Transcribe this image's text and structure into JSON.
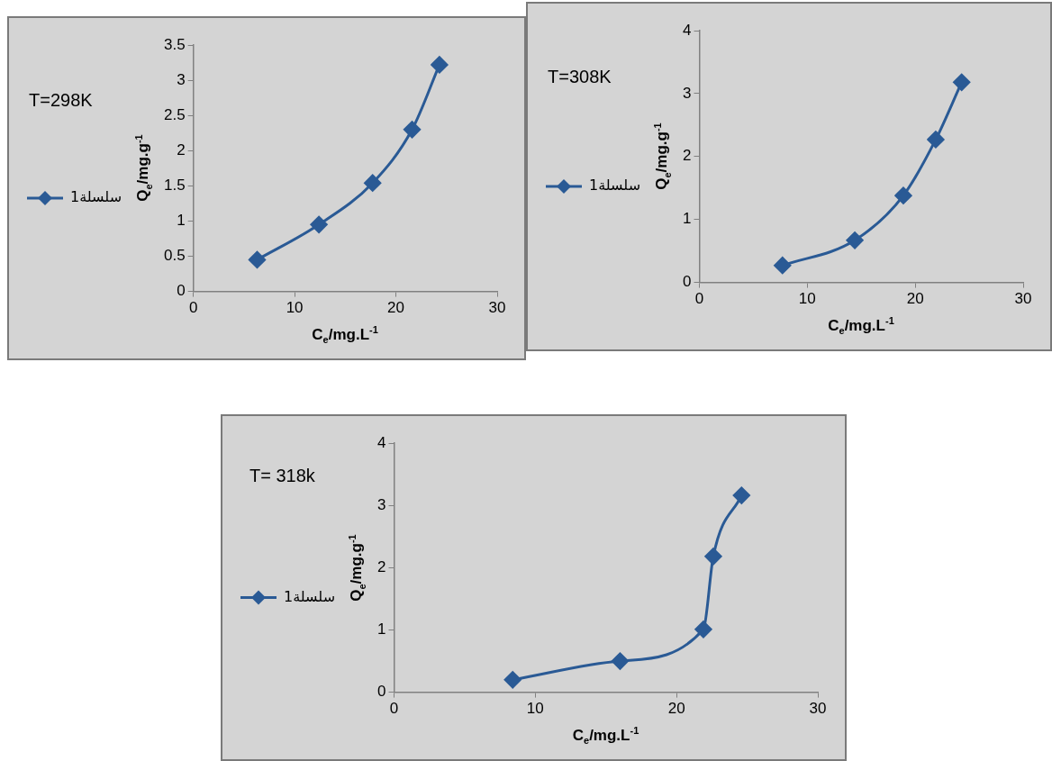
{
  "chart_data": [
    {
      "type": "line",
      "title": "T=298K",
      "xlabel": "C$_{e}$/mg.L$^{-1}$",
      "ylabel": "Q$_{e}$/mg.g$^{-1}$",
      "legend": "left",
      "marker": "diamond",
      "xlim": [
        0,
        30
      ],
      "xticks": [
        0,
        10,
        20,
        30
      ],
      "ylim": [
        0,
        3.5
      ],
      "yticks": [
        0,
        0.5,
        1,
        1.5,
        2,
        2.5,
        3,
        3.5
      ],
      "x": [
        6.3,
        12.4,
        17.7,
        21.6,
        24.3
      ],
      "series": [
        {
          "name": "سلسلة1",
          "color": "#2a5a95",
          "values": [
            0.45,
            0.95,
            1.54,
            2.3,
            3.22
          ]
        }
      ]
    },
    {
      "type": "line",
      "title": "T=308K",
      "xlabel": "C$_{e}$/mg.L$^{-1}$",
      "ylabel": "Q$_{e}$/mg.g$^{-1}$",
      "legend": "left",
      "marker": "diamond",
      "xlim": [
        0,
        30
      ],
      "xticks": [
        0,
        10,
        20,
        30
      ],
      "ylim": [
        0,
        4
      ],
      "yticks": [
        0,
        1,
        2,
        3,
        4
      ],
      "x": [
        7.7,
        14.4,
        18.9,
        21.9,
        24.3
      ],
      "series": [
        {
          "name": "سلسلة1",
          "color": "#2a5a95",
          "values": [
            0.27,
            0.67,
            1.38,
            2.27,
            3.18
          ]
        }
      ]
    },
    {
      "type": "line",
      "title": "T= 318k",
      "xlabel": "C$_{e}$/mg.L$^{-1}$",
      "ylabel": "Q$_{e}$/mg.g$^{-1}$",
      "legend": "left",
      "marker": "diamond",
      "xlim": [
        0,
        30
      ],
      "xticks": [
        0,
        10,
        20,
        30
      ],
      "ylim": [
        0,
        4
      ],
      "yticks": [
        0,
        1,
        2,
        3,
        4
      ],
      "x": [
        8.4,
        16.0,
        21.9,
        22.6,
        24.6
      ],
      "series": [
        {
          "name": "سلسلة1",
          "color": "#2a5a95",
          "values": [
            0.2,
            0.5,
            1.01,
            2.18,
            3.16
          ]
        }
      ]
    }
  ]
}
